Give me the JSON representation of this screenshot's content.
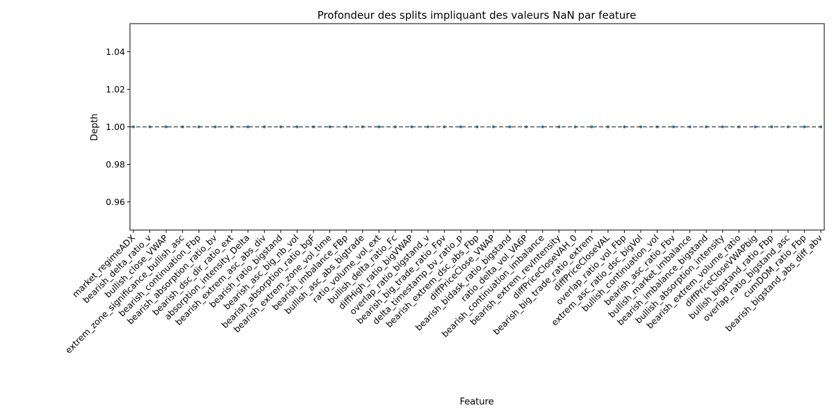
{
  "chart_data": {
    "type": "scatter",
    "title": "Profondeur des splits impliquant des valeurs NaN par feature",
    "xlabel": "Feature",
    "ylabel": "Depth",
    "ylim": [
      0.945,
      1.055
    ],
    "yticks": [
      "0.96",
      "0.98",
      "1.00",
      "1.02",
      "1.04"
    ],
    "grid": false,
    "reference_line": {
      "y": 1.0,
      "style": "dashed",
      "color": "#555555"
    },
    "point_color": "#1f77b4",
    "categories": [
      "market_regimeADX",
      "bearish_delta_ratio_v",
      "bullish_close_VWAP",
      "extrem_zone_significance_bullish_asc",
      "bearish_continuation_Fbp",
      "bearish_absorption_ratio_bv",
      "bearish_dsc_dir_ratio_ext",
      "absorption_intensity_Delta",
      "bearish_extrem_asc_abs_div",
      "bearish_ratio_bigstand",
      "bearish_asc_big_nb_vol",
      "bearish_absorption_ratio_bgF",
      "bearish_extrem_zone_vol_time",
      "bearish_imbalance_FBp",
      "bullish_asc_abs_bigtrade",
      "ratio_volume_vol_ext",
      "bullish_delta_ratio_Fc",
      "diffHigh_ratio_bigVWAP",
      "overlap_ratio_bigstand_v",
      "bearish_big_trade_ratio_Fpv",
      "delta_timestamp_bv_ratio_p",
      "bearish_extrem_dsc_abs_Fbp",
      "diffPriceClose_VWAP",
      "bearish_bidask_ratio_bigstand",
      "ratio_delta_vol_VA6P",
      "bearish_continuation_imbalance",
      "bearish_extrem_revIntensity",
      "diffPriceCloseVAH_0",
      "bearish_big_trade_ratio_extrem",
      "diffPriceCloseVAL",
      "overlap_ratio_vol_Fbp",
      "extrem_asc_ratio_dsc_bigVol",
      "bullish_continuation_vol",
      "bearish_asc_ratio_Fbv",
      "bullish_market_imbalance",
      "bearish_imbalance_bigstand",
      "bullish_absorption_intensity",
      "bearish_extrem_volume_ratio",
      "diffPriceCloseVWAPbig",
      "bullish_bigstand_ratio_Fbp",
      "overlap_ratio_bigstand_asc",
      "cumDOM_ratio_Fbp",
      "bearish_bigstand_abs_diff_abv"
    ],
    "values": [
      1,
      1,
      1,
      1,
      1,
      1,
      1,
      1,
      1,
      1,
      1,
      1,
      1,
      1,
      1,
      1,
      1,
      1,
      1,
      1,
      1,
      1,
      1,
      1,
      1,
      1,
      1,
      1,
      1,
      1,
      1,
      1,
      1,
      1,
      1,
      1,
      1,
      1,
      1,
      1,
      1,
      1,
      1
    ]
  }
}
